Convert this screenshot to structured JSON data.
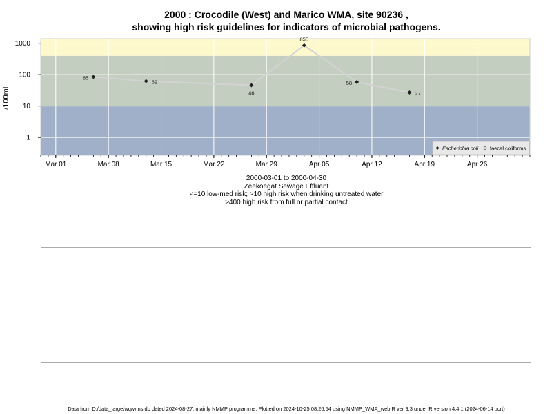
{
  "title_line1": "2000 : Crocodile (West) and Marico WMA, site 90236 ,",
  "title_line2": "showing high risk guidelines for indicators of microbial pathogens.",
  "subtitle": {
    "date_range": "2000-03-01 to 2000-04-30",
    "site_name": "Zeekoegat Sewage Effluent",
    "risk_note_1": "<=10 low-med risk; >10 high risk when drinking untreated water",
    "risk_note_2": ">400 high risk from full or partial contact"
  },
  "footer": "Data from D:/data_large/wq/wms.db dated 2024-08-27, mainly NMMP programme. Plotted on 2024-10-25 08:26:54 using NMMP_WMA_web.R ver 9.3 under R version 4.4.1 (2024-06-14 ucrt)",
  "colors": {
    "band_low": "#a0b0c8",
    "band_mid": "#c3cdc0",
    "band_high": "#fef9cc",
    "line": "#d3d3d3",
    "point": "#222222",
    "grid": "#ffffff"
  },
  "chart_data": {
    "type": "line",
    "title": "2000 : Crocodile (West) and Marico WMA, site 90236 , showing high risk guidelines for indicators of microbial pathogens.",
    "xlabel": "",
    "ylabel": "/100mL",
    "yscale": "log",
    "ylim": [
      0.27,
      1400
    ],
    "y_ticks": [
      1,
      10,
      100,
      1000
    ],
    "y_tick_labels": [
      "1",
      "10",
      "100",
      "1000"
    ],
    "x_ticks": [
      "2000-03-01",
      "2000-03-08",
      "2000-03-15",
      "2000-03-22",
      "2000-03-29",
      "2000-04-05",
      "2000-04-12",
      "2000-04-19",
      "2000-04-26"
    ],
    "x_tick_labels": [
      "Mar 01",
      "Mar 08",
      "Mar 15",
      "Mar 22",
      "Mar 29",
      "Apr 05",
      "Apr 12",
      "Apr 19",
      "Apr 26"
    ],
    "xlim": [
      "2000-02-28",
      "2000-05-03"
    ],
    "grid": true,
    "risk_bands": [
      {
        "from": 0.27,
        "to": 10,
        "color": "#a0b0c8"
      },
      {
        "from": 10,
        "to": 400,
        "color": "#c3cdc0"
      },
      {
        "from": 400,
        "to": 1400,
        "color": "#fef9cc"
      }
    ],
    "series": [
      {
        "name": "Escherichia coli",
        "x": [
          "2000-03-06",
          "2000-03-13",
          "2000-03-27",
          "2000-04-03",
          "2000-04-10",
          "2000-04-17"
        ],
        "values": [
          85,
          62,
          46,
          855,
          58,
          27
        ],
        "labels": [
          "85",
          "62",
          "46",
          "855",
          "58",
          "27"
        ]
      },
      {
        "name": "faecal coliforms",
        "x": [],
        "values": []
      }
    ],
    "legend_position": "bottom-right"
  }
}
